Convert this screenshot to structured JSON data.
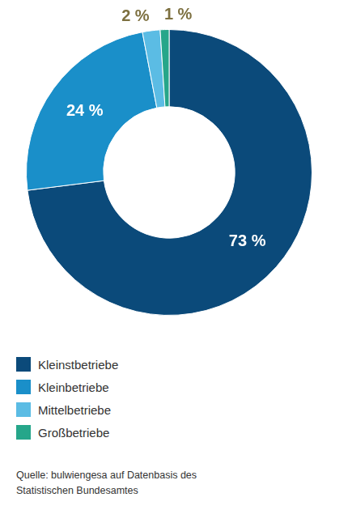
{
  "chart_data": {
    "type": "doughnut",
    "categories": [
      "Kleinstbetriebe",
      "Kleinbetriebe",
      "Mittelbetriebe",
      "Großbetriebe"
    ],
    "values": [
      73,
      24,
      2,
      1
    ],
    "value_labels": [
      "73 %",
      "24 %",
      "2 %",
      "1 %"
    ],
    "colors": [
      "#0b4a7a",
      "#1a8fc9",
      "#5bbce4",
      "#26a68a"
    ],
    "data_labels": true,
    "legend": "bottom",
    "source": "Quelle: bulwiengesa auf Datenbasis des Statistischen Bundesamtes"
  }
}
